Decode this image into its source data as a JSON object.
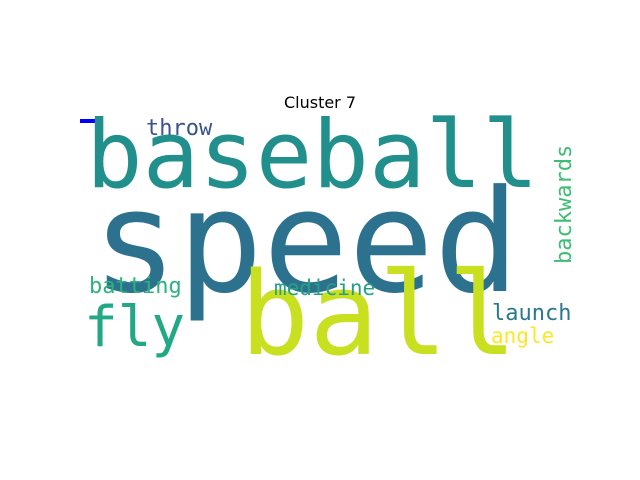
{
  "title": "Cluster 7",
  "marker_color": "#0000ff",
  "words": [
    {
      "text": "speed",
      "color": "#2c728e"
    },
    {
      "text": "baseball",
      "color": "#21908d"
    },
    {
      "text": "ball",
      "color": "#c8e020"
    },
    {
      "text": "fly",
      "color": "#22a884"
    },
    {
      "text": "throw",
      "color": "#3b528b"
    },
    {
      "text": "batting",
      "color": "#2db27d"
    },
    {
      "text": "medicine",
      "color": "#25a085"
    },
    {
      "text": "launch",
      "color": "#2a788e"
    },
    {
      "text": "angle",
      "color": "#fde725"
    },
    {
      "text": "backwards",
      "color": "#3dbc74"
    }
  ]
}
